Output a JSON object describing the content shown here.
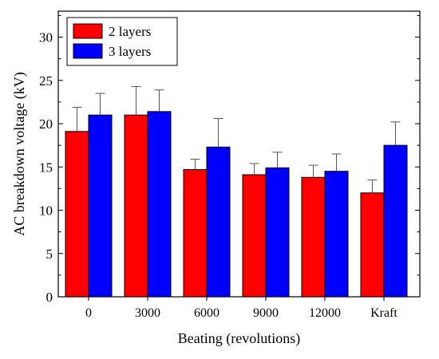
{
  "chart_data": {
    "type": "bar",
    "title": "",
    "xlabel": "Beating (revolutions)",
    "ylabel": "AC breakdown voltage (kV)",
    "categories": [
      "0",
      "3000",
      "6000",
      "9000",
      "12000",
      "Kraft"
    ],
    "ylim": [
      0,
      33
    ],
    "yticks": [
      0,
      5,
      10,
      15,
      20,
      25,
      30
    ],
    "grid": false,
    "legend_position": "top-left",
    "series": [
      {
        "name": "2 layers",
        "color": "#ff0000",
        "values": [
          19.1,
          21.0,
          14.7,
          14.1,
          13.8,
          12.0
        ],
        "error": [
          2.8,
          3.3,
          1.2,
          1.3,
          1.4,
          1.5
        ]
      },
      {
        "name": "3 layers",
        "color": "#0000ff",
        "values": [
          21.0,
          21.4,
          17.3,
          14.9,
          14.5,
          17.5
        ],
        "error": [
          2.5,
          2.5,
          3.3,
          1.8,
          2.0,
          2.7
        ]
      }
    ]
  }
}
